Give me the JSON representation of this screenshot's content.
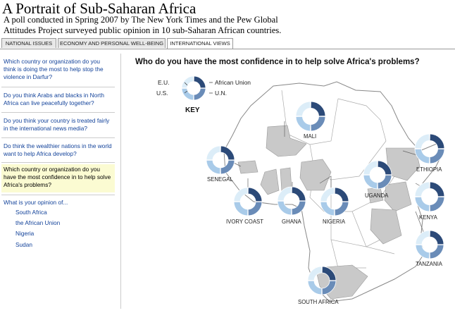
{
  "header": {
    "title": "A Portrait of Sub-Saharan Africa",
    "subtitle": "A poll conducted in Spring 2007 by The New York Times and the Pew Global Attitudes Project surveyed public opinion in 10 sub-Saharan African countries."
  },
  "tabs": [
    {
      "label": "NATIONAL ISSUES"
    },
    {
      "label": "ECONOMY AND PERSONAL WELL-BEING"
    },
    {
      "label": "INTERNATIONAL VIEWS"
    }
  ],
  "sidebar": {
    "questions": [
      {
        "label": "Which country or organization do you think is doing the most to help stop the violence in Darfur?"
      },
      {
        "label": "Do you think Arabs and blacks in North Africa can live peacefully together?"
      },
      {
        "label": "Do you think your country is treated fairly in the international news media?"
      },
      {
        "label": "Do think the wealthier nations in the world want to help Africa develop?"
      },
      {
        "label": "Which country or organization do you have the most confidence in to help solve Africa's problems?"
      }
    ],
    "opinion_heading": "What is your opinion of...",
    "opinion_items": [
      {
        "label": "South Africa"
      },
      {
        "label": "the African Union"
      },
      {
        "label": "Nigeria"
      },
      {
        "label": "Sudan"
      }
    ]
  },
  "main": {
    "question": "Who do you have the most confidence in to help solve Africa's problems?"
  },
  "key": {
    "title": "KEY",
    "eu": "E.U.",
    "us": "U.S.",
    "african_union": "African Union",
    "un": "U.N."
  },
  "colors": {
    "african_union": "#2c4a78",
    "un": "#6a8cb8",
    "us": "#a9cbe9",
    "eu": "#dcedf8",
    "land": "#ffffff",
    "surveyed": "#c9c9c9",
    "tab_active_text": "#222",
    "link": "#12429a",
    "highlight": "#fbfbd2"
  },
  "countries": [
    {
      "name": "MALI"
    },
    {
      "name": "SENEGAL"
    },
    {
      "name": "IVORY COAST"
    },
    {
      "name": "GHANA"
    },
    {
      "name": "NIGERIA"
    },
    {
      "name": "UGANDA"
    },
    {
      "name": "ETHIOPIA"
    },
    {
      "name": "KENYA"
    },
    {
      "name": "TANZANIA"
    },
    {
      "name": "SOUTH AFRICA"
    }
  ]
}
